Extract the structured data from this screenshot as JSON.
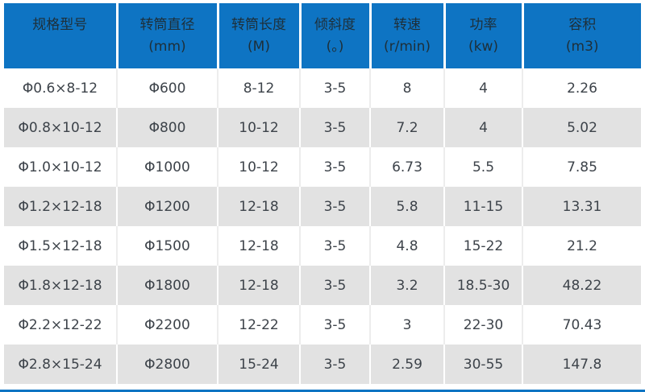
{
  "colors": {
    "header_bg": "#0e74c3",
    "header_text": "#1e2f39",
    "body_text": "#3d434a",
    "stripe_bg": "#e2e2e2",
    "accent_line": "#0e74c3"
  },
  "chart_data": {
    "type": "table",
    "columns": [
      {
        "label": "规格型号",
        "unit": ""
      },
      {
        "label": "转筒直径",
        "unit": "(mm)"
      },
      {
        "label": "转筒长度",
        "unit": "(M)"
      },
      {
        "label": "倾斜度",
        "unit": "(。)"
      },
      {
        "label": "转速",
        "unit": "(r/min)"
      },
      {
        "label": "功率",
        "unit": "(kw)"
      },
      {
        "label": "容积",
        "unit": "(m3)"
      }
    ],
    "rows": [
      [
        "Φ0.6×8-12",
        "Φ600",
        "8-12",
        "3-5",
        "8",
        "4",
        "2.26"
      ],
      [
        "Φ0.8×10-12",
        "Φ800",
        "10-12",
        "3-5",
        "7.2",
        "4",
        "5.02"
      ],
      [
        "Φ1.0×10-12",
        "Φ1000",
        "10-12",
        "3-5",
        "6.73",
        "5.5",
        "7.85"
      ],
      [
        "Φ1.2×12-18",
        "Φ1200",
        "12-18",
        "3-5",
        "5.8",
        "11-15",
        "13.31"
      ],
      [
        "Φ1.5×12-18",
        "Φ1500",
        "12-18",
        "3-5",
        "4.8",
        "15-22",
        "21.2"
      ],
      [
        "Φ1.8×12-18",
        "Φ1800",
        "12-18",
        "3-5",
        "3.2",
        "18.5-30",
        "48.22"
      ],
      [
        "Φ2.2×12-22",
        "Φ2200",
        "12-22",
        "3-5",
        "3",
        "22-30",
        "70.43"
      ],
      [
        "Φ2.8×15-24",
        "Φ2800",
        "15-24",
        "3-5",
        "2.59",
        "30-55",
        "147.8"
      ]
    ]
  }
}
